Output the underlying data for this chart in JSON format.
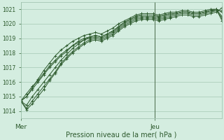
{
  "title": "",
  "xlabel": "Pression niveau de la mer( hPa )",
  "ylabel": "",
  "bg_color": "#d4ede0",
  "plot_bg_color": "#d4ede0",
  "grid_color": "#9abfaa",
  "line_color": "#2d5a2d",
  "text_color": "#2d5a2d",
  "ylim": [
    1013.5,
    1021.5
  ],
  "xlim": [
    0,
    36
  ],
  "x_ticks": [
    0,
    24
  ],
  "x_tick_labels": [
    "Mer",
    "Jeu"
  ],
  "y_ticks": [
    1014,
    1015,
    1016,
    1017,
    1018,
    1019,
    1020,
    1021
  ],
  "vline_x": 24,
  "series": [
    [
      1014.7,
      1014.1,
      1014.5,
      1015.0,
      1015.5,
      1016.1,
      1016.6,
      1017.2,
      1017.6,
      1018.0,
      1018.3,
      1018.6,
      1018.8,
      1018.9,
      1018.8,
      1019.0,
      1019.2,
      1019.5,
      1019.8,
      1020.0,
      1020.2,
      1020.3,
      1020.3,
      1020.3,
      1020.2,
      1020.3,
      1020.4,
      1020.5,
      1020.6,
      1020.6,
      1020.5,
      1020.5,
      1020.6,
      1020.7,
      1020.8,
      1021.1
    ],
    [
      1014.7,
      1014.2,
      1014.7,
      1015.2,
      1015.7,
      1016.2,
      1016.7,
      1017.3,
      1017.7,
      1018.1,
      1018.4,
      1018.7,
      1018.9,
      1019.0,
      1018.9,
      1019.1,
      1019.3,
      1019.6,
      1019.9,
      1020.1,
      1020.3,
      1020.4,
      1020.4,
      1020.4,
      1020.3,
      1020.4,
      1020.5,
      1020.6,
      1020.7,
      1020.7,
      1020.6,
      1020.6,
      1020.7,
      1020.8,
      1020.9,
      1020.9
    ],
    [
      1014.7,
      1014.4,
      1015.0,
      1015.5,
      1016.0,
      1016.5,
      1017.0,
      1017.5,
      1017.9,
      1018.3,
      1018.6,
      1018.9,
      1019.0,
      1019.1,
      1019.0,
      1019.2,
      1019.4,
      1019.7,
      1020.0,
      1020.2,
      1020.4,
      1020.5,
      1020.5,
      1020.5,
      1020.4,
      1020.5,
      1020.6,
      1020.7,
      1020.8,
      1020.8,
      1020.7,
      1020.7,
      1020.8,
      1020.9,
      1021.0,
      1020.8
    ],
    [
      1014.7,
      1015.0,
      1015.5,
      1016.0,
      1016.5,
      1017.0,
      1017.4,
      1017.8,
      1018.1,
      1018.5,
      1018.7,
      1018.9,
      1019.1,
      1019.2,
      1019.1,
      1019.3,
      1019.5,
      1019.8,
      1020.1,
      1020.3,
      1020.5,
      1020.6,
      1020.6,
      1020.6,
      1020.5,
      1020.6,
      1020.7,
      1020.7,
      1020.8,
      1020.8,
      1020.7,
      1020.7,
      1020.8,
      1020.9,
      1021.0,
      1020.5
    ],
    [
      1014.7,
      1015.2,
      1015.7,
      1016.1,
      1016.6,
      1017.1,
      1017.5,
      1017.9,
      1018.2,
      1018.5,
      1018.8,
      1019.0,
      1019.1,
      1019.2,
      1019.1,
      1019.3,
      1019.5,
      1019.8,
      1020.1,
      1020.3,
      1020.5,
      1020.6,
      1020.6,
      1020.6,
      1020.5,
      1020.6,
      1020.7,
      1020.7,
      1020.8,
      1020.8,
      1020.7,
      1020.7,
      1020.8,
      1020.9,
      1020.9,
      1020.4
    ],
    [
      1014.7,
      1015.0,
      1015.6,
      1016.2,
      1016.8,
      1017.3,
      1017.8,
      1018.2,
      1018.5,
      1018.8,
      1019.0,
      1019.2,
      1019.3,
      1019.4,
      1019.3,
      1019.5,
      1019.7,
      1020.0,
      1020.2,
      1020.4,
      1020.6,
      1020.7,
      1020.7,
      1020.7,
      1020.6,
      1020.7,
      1020.8,
      1020.8,
      1020.9,
      1020.9,
      1020.8,
      1020.8,
      1020.9,
      1021.0,
      1021.0,
      1020.2
    ]
  ]
}
